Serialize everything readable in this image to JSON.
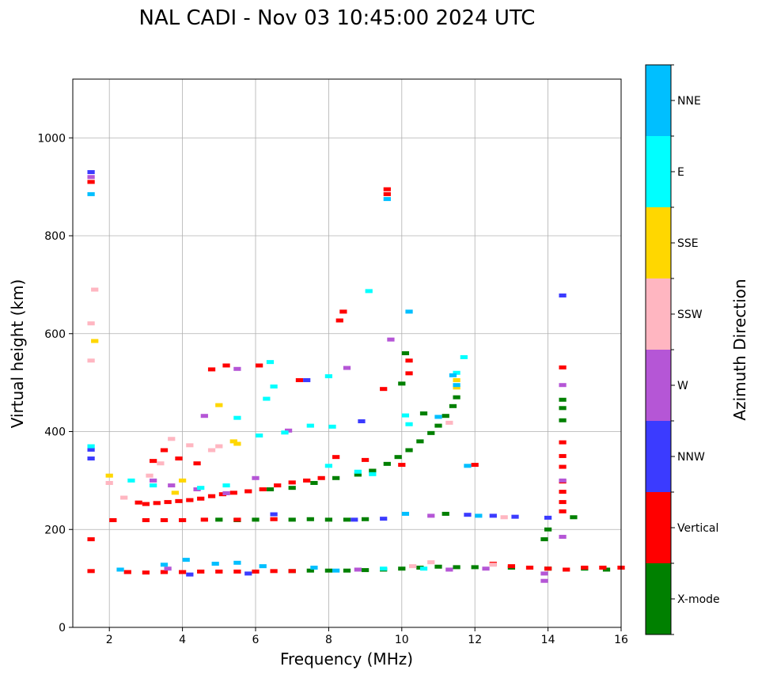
{
  "chart_data": {
    "type": "scatter",
    "title": "NAL CADI - Nov 03 10:45:00 2024 UTC",
    "xlabel": "Frequency (MHz)",
    "ylabel": "Virtual height (km)",
    "xlim": [
      1,
      16
    ],
    "ylim": [
      0,
      1120
    ],
    "xticks": [
      2,
      4,
      6,
      8,
      10,
      12,
      14,
      16
    ],
    "yticks": [
      0,
      200,
      400,
      600,
      800,
      1000
    ],
    "grid": true,
    "colorbar": {
      "label": "Azimuth Direction",
      "categories": [
        {
          "name": "X-mode",
          "color": "#008000"
        },
        {
          "name": "Vertical",
          "color": "#ff0000"
        },
        {
          "name": "NNW",
          "color": "#3b3bff"
        },
        {
          "name": "W",
          "color": "#b556d6"
        },
        {
          "name": "SSW",
          "color": "#ffb6c1"
        },
        {
          "name": "SSE",
          "color": "#ffd700"
        },
        {
          "name": "E",
          "color": "#00ffff"
        },
        {
          "name": "NNE",
          "color": "#00bfff"
        }
      ]
    },
    "series": [
      {
        "name": "X-mode",
        "points": [
          [
            5.0,
            220
          ],
          [
            5.5,
            219
          ],
          [
            6.0,
            220
          ],
          [
            7.0,
            220
          ],
          [
            7.5,
            221
          ],
          [
            8.0,
            220
          ],
          [
            8.5,
            220
          ],
          [
            9.0,
            221
          ],
          [
            6.4,
            282
          ],
          [
            7.0,
            285
          ],
          [
            7.6,
            295
          ],
          [
            8.2,
            305
          ],
          [
            8.8,
            312
          ],
          [
            9.2,
            320
          ],
          [
            9.6,
            334
          ],
          [
            9.9,
            348
          ],
          [
            10.2,
            362
          ],
          [
            10.5,
            380
          ],
          [
            10.8,
            397
          ],
          [
            11.0,
            412
          ],
          [
            11.2,
            432
          ],
          [
            11.4,
            452
          ],
          [
            11.5,
            470
          ],
          [
            10.0,
            498
          ],
          [
            10.6,
            437
          ],
          [
            7.0,
            115
          ],
          [
            7.5,
            116
          ],
          [
            8.0,
            116
          ],
          [
            8.5,
            116
          ],
          [
            9.0,
            117
          ],
          [
            9.5,
            118
          ],
          [
            10.0,
            120
          ],
          [
            10.5,
            122
          ],
          [
            11.0,
            124
          ],
          [
            11.5,
            123
          ],
          [
            12.0,
            123
          ],
          [
            13.0,
            122
          ],
          [
            14.0,
            120
          ],
          [
            15.0,
            120
          ],
          [
            15.6,
            118
          ],
          [
            14.4,
            465
          ],
          [
            14.4,
            448
          ],
          [
            14.4,
            423
          ],
          [
            14.7,
            225
          ],
          [
            14.0,
            200
          ],
          [
            13.9,
            180
          ],
          [
            11.2,
            232
          ],
          [
            10.1,
            560
          ]
        ]
      },
      {
        "name": "Vertical",
        "points": [
          [
            2.8,
            255
          ],
          [
            3.0,
            252
          ],
          [
            3.3,
            254
          ],
          [
            3.6,
            256
          ],
          [
            3.9,
            258
          ],
          [
            4.2,
            260
          ],
          [
            4.5,
            263
          ],
          [
            4.8,
            268
          ],
          [
            5.1,
            272
          ],
          [
            5.4,
            275
          ],
          [
            5.8,
            278
          ],
          [
            6.2,
            282
          ],
          [
            6.6,
            290
          ],
          [
            7.0,
            296
          ],
          [
            7.4,
            300
          ],
          [
            7.8,
            305
          ],
          [
            3.5,
            362
          ],
          [
            3.9,
            345
          ],
          [
            4.4,
            335
          ],
          [
            2.1,
            219
          ],
          [
            3.0,
            219
          ],
          [
            3.5,
            219
          ],
          [
            4.0,
            219
          ],
          [
            4.6,
            220
          ],
          [
            5.5,
            220
          ],
          [
            6.5,
            221
          ],
          [
            1.5,
            115
          ],
          [
            2.5,
            113
          ],
          [
            3.0,
            112
          ],
          [
            3.5,
            113
          ],
          [
            4.0,
            113
          ],
          [
            4.5,
            114
          ],
          [
            5.0,
            114
          ],
          [
            5.5,
            114
          ],
          [
            6.0,
            114
          ],
          [
            6.5,
            115
          ],
          [
            7.0,
            115
          ],
          [
            12.5,
            130
          ],
          [
            13.0,
            125
          ],
          [
            13.5,
            122
          ],
          [
            14.0,
            120
          ],
          [
            14.5,
            118
          ],
          [
            15.0,
            122
          ],
          [
            15.5,
            122
          ],
          [
            16.0,
            122
          ],
          [
            1.5,
            180
          ],
          [
            1.5,
            910
          ],
          [
            9.6,
            895
          ],
          [
            9.6,
            885
          ],
          [
            8.4,
            645
          ],
          [
            8.3,
            627
          ],
          [
            9.5,
            487
          ],
          [
            10.2,
            545
          ],
          [
            10.2,
            519
          ],
          [
            7.2,
            505
          ],
          [
            5.2,
            535
          ],
          [
            4.8,
            527
          ],
          [
            6.1,
            535
          ],
          [
            14.4,
            531
          ],
          [
            14.4,
            378
          ],
          [
            14.4,
            350
          ],
          [
            14.4,
            328
          ],
          [
            14.4,
            298
          ],
          [
            14.4,
            277
          ],
          [
            14.4,
            256
          ],
          [
            14.4,
            237
          ],
          [
            12.0,
            332
          ],
          [
            8.2,
            348
          ],
          [
            9.0,
            342
          ],
          [
            10.0,
            332
          ],
          [
            3.2,
            340
          ]
        ]
      },
      {
        "name": "NNW",
        "points": [
          [
            1.5,
            930
          ],
          [
            1.5,
            363
          ],
          [
            1.5,
            345
          ],
          [
            14.4,
            678
          ],
          [
            7.4,
            505
          ],
          [
            6.5,
            231
          ],
          [
            8.9,
            421
          ],
          [
            4.2,
            108
          ],
          [
            5.8,
            110
          ],
          [
            8.7,
            220
          ],
          [
            9.5,
            222
          ],
          [
            11.8,
            230
          ],
          [
            12.5,
            228
          ],
          [
            13.1,
            226
          ],
          [
            14.0,
            224
          ]
        ]
      },
      {
        "name": "W",
        "points": [
          [
            1.5,
            920
          ],
          [
            9.7,
            588
          ],
          [
            8.5,
            530
          ],
          [
            4.6,
            432
          ],
          [
            5.5,
            528
          ],
          [
            3.2,
            300
          ],
          [
            3.7,
            290
          ],
          [
            4.4,
            282
          ],
          [
            5.2,
            274
          ],
          [
            6.0,
            305
          ],
          [
            6.9,
            402
          ],
          [
            14.4,
            495
          ],
          [
            14.4,
            300
          ],
          [
            14.4,
            185
          ],
          [
            13.9,
            95
          ],
          [
            13.9,
            110
          ],
          [
            11.3,
            118
          ],
          [
            12.3,
            120
          ],
          [
            3.6,
            120
          ],
          [
            8.8,
            118
          ],
          [
            10.8,
            228
          ]
        ]
      },
      {
        "name": "SSW",
        "points": [
          [
            1.5,
            545
          ],
          [
            1.6,
            690
          ],
          [
            1.5,
            621
          ],
          [
            2.0,
            295
          ],
          [
            2.4,
            265
          ],
          [
            3.1,
            310
          ],
          [
            3.7,
            385
          ],
          [
            4.2,
            372
          ],
          [
            4.8,
            362
          ],
          [
            5.0,
            370
          ],
          [
            3.4,
            335
          ],
          [
            10.3,
            125
          ],
          [
            10.8,
            133
          ],
          [
            12.5,
            128
          ],
          [
            11.3,
            418
          ],
          [
            12.8,
            225
          ]
        ]
      },
      {
        "name": "SSE",
        "points": [
          [
            1.6,
            585
          ],
          [
            2.0,
            310
          ],
          [
            5.0,
            454
          ],
          [
            5.4,
            380
          ],
          [
            5.5,
            375
          ],
          [
            11.5,
            490
          ],
          [
            11.5,
            505
          ],
          [
            3.8,
            275
          ],
          [
            4.0,
            300
          ]
        ]
      },
      {
        "name": "E",
        "points": [
          [
            9.1,
            687
          ],
          [
            6.4,
            542
          ],
          [
            6.5,
            492
          ],
          [
            6.3,
            467
          ],
          [
            8.0,
            513
          ],
          [
            5.5,
            428
          ],
          [
            6.1,
            392
          ],
          [
            6.8,
            398
          ],
          [
            7.5,
            412
          ],
          [
            8.1,
            410
          ],
          [
            8.0,
            330
          ],
          [
            8.8,
            318
          ],
          [
            9.2,
            313
          ],
          [
            10.1,
            433
          ],
          [
            10.2,
            415
          ],
          [
            11.5,
            520
          ],
          [
            11.7,
            552
          ],
          [
            1.5,
            370
          ],
          [
            2.6,
            300
          ],
          [
            3.2,
            290
          ],
          [
            4.5,
            285
          ],
          [
            5.2,
            290
          ],
          [
            9.5,
            120
          ],
          [
            10.6,
            120
          ]
        ]
      },
      {
        "name": "NNE",
        "points": [
          [
            10.2,
            645
          ],
          [
            1.5,
            885
          ],
          [
            9.6,
            875
          ],
          [
            11.0,
            430
          ],
          [
            11.4,
            515
          ],
          [
            11.5,
            495
          ],
          [
            11.8,
            330
          ],
          [
            2.3,
            118
          ],
          [
            3.5,
            128
          ],
          [
            4.1,
            138
          ],
          [
            4.9,
            130
          ],
          [
            5.5,
            132
          ],
          [
            6.2,
            125
          ],
          [
            7.6,
            122
          ],
          [
            8.2,
            116
          ],
          [
            10.1,
            232
          ],
          [
            12.1,
            228
          ]
        ]
      }
    ]
  }
}
